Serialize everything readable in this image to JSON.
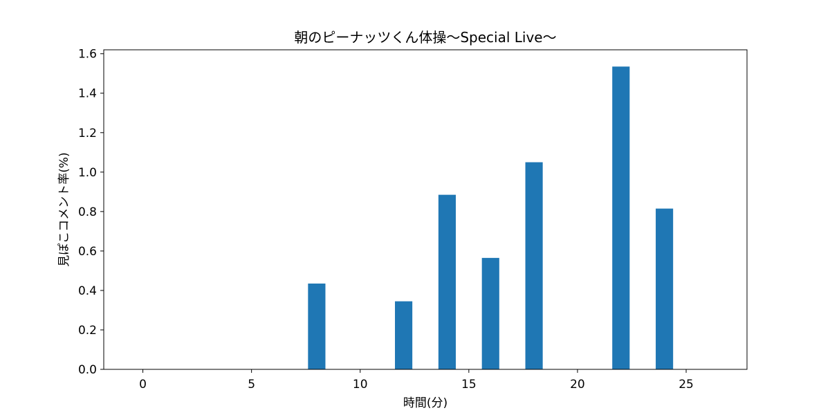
{
  "chart_data": {
    "type": "bar",
    "title": "朝のピーナッツくん体操〜Special Live〜",
    "xlabel": "時間(分)",
    "ylabel": "見ぽこコメント率(%)",
    "x": [
      0,
      2,
      4,
      6,
      8,
      10,
      12,
      14,
      16,
      18,
      20,
      22,
      24,
      26
    ],
    "values": [
      0,
      0,
      0,
      0,
      0.435,
      0,
      0.345,
      0.885,
      0.565,
      1.05,
      0,
      1.535,
      0.815,
      0
    ],
    "xlim": [
      -1.8,
      27.8
    ],
    "ylim": [
      0,
      1.62
    ],
    "xticks": [
      0,
      5,
      10,
      15,
      20,
      25
    ],
    "xtick_labels": [
      "0",
      "5",
      "10",
      "15",
      "20",
      "25"
    ],
    "yticks": [
      0.0,
      0.2,
      0.4,
      0.6,
      0.8,
      1.0,
      1.2,
      1.4,
      1.6
    ],
    "ytick_labels": [
      "0.0",
      "0.2",
      "0.4",
      "0.6",
      "0.8",
      "1.0",
      "1.2",
      "1.4",
      "1.6"
    ],
    "bar_color": "#1f77b4",
    "grid": false,
    "legend": "none"
  }
}
